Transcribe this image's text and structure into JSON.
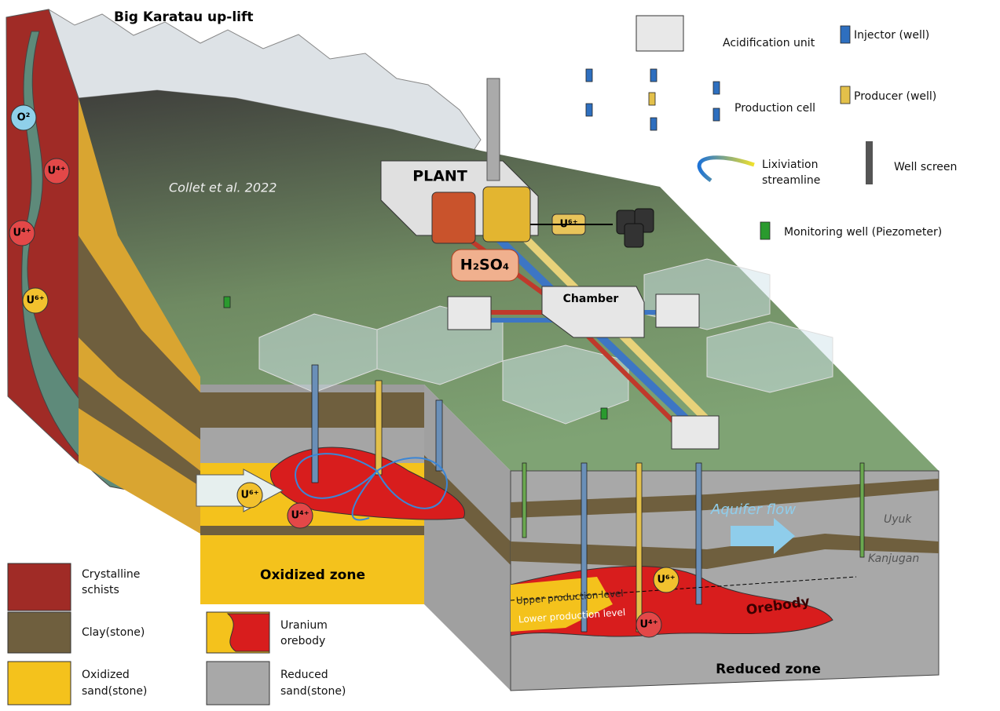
{
  "header": {
    "title": "Big Karatau up-lift",
    "citation": "Collet et al. 2022"
  },
  "plant": {
    "plant": "PLANT",
    "chamber": "Chamber",
    "acid": "H₂SO₄",
    "product": "U⁶⁺"
  },
  "legend_top": [
    {
      "label": "Acidification unit"
    },
    {
      "label": "Injector (well)"
    },
    {
      "label": "Production cell"
    },
    {
      "label": "Producer (well)"
    },
    {
      "label": [
        "Lixiviation",
        "streamline"
      ]
    },
    {
      "label": "Well screen"
    },
    {
      "label": "Monitoring well (Piezometer)"
    }
  ],
  "legend_bottom": [
    {
      "label": [
        "Crystalline",
        "schists"
      ]
    },
    {
      "label": [
        "Clay(stone)"
      ]
    },
    {
      "label": [
        "Uranium",
        "orebody"
      ]
    },
    {
      "label": [
        "Oxidized",
        "sand(stone)"
      ]
    },
    {
      "label": [
        "Reduced",
        "sand(stone)"
      ]
    }
  ],
  "zones": {
    "oxidized": "Oxidized zone",
    "reduced": "Reduced zone"
  },
  "annotations": {
    "flow": "Aquifer flow",
    "uyuk": "Uyuk",
    "kanjugan": "Kanjugan",
    "upper": "Upper production level",
    "lower": "Lower production level",
    "orebody": "Orebody"
  },
  "ions": [
    "O²",
    "U⁴⁺",
    "U⁴⁺",
    "U⁶⁺",
    "U⁶⁺",
    "U⁴⁺",
    "U⁶⁺",
    "U⁴⁺"
  ]
}
